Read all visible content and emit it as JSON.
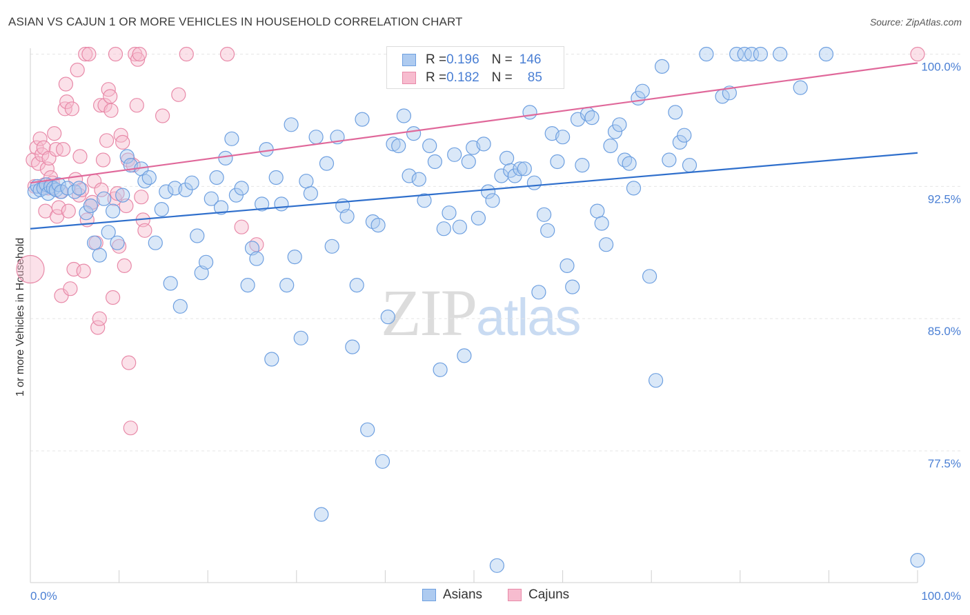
{
  "header": {
    "title": "ASIAN VS CAJUN 1 OR MORE VEHICLES IN HOUSEHOLD CORRELATION CHART",
    "source": "Source: ZipAtlas.com"
  },
  "watermark": {
    "zip": "ZIP",
    "atlas": "atlas"
  },
  "legend_top": {
    "rows": [
      {
        "r_label": "R = ",
        "r_value": "0.196",
        "n_label": "N = ",
        "n_value": "146"
      },
      {
        "r_label": "R = ",
        "r_value": "0.182",
        "n_label": "N = ",
        "n_value": "85"
      }
    ]
  },
  "legend_bottom": {
    "asians": "Asians",
    "cajuns": "Cajuns"
  },
  "colors": {
    "asian_fill": "#aecbf0",
    "asian_stroke": "#6d9fe0",
    "asian_line": "#2f6fcc",
    "cajun_fill": "#f7bccf",
    "cajun_stroke": "#e889a8",
    "cajun_line": "#e0689a",
    "tick_label": "#4a7fd4",
    "grid": "#e5e5e5"
  },
  "chart_data": {
    "type": "scatter",
    "title": "ASIAN VS CAJUN 1 OR MORE VEHICLES IN HOUSEHOLD CORRELATION CHART",
    "xlabel": "",
    "ylabel": "1 or more Vehicles in Household",
    "xlim": [
      0,
      100
    ],
    "ylim": [
      70.5,
      101.5
    ],
    "x_tick_labels": [
      "0.0%",
      "100.0%"
    ],
    "y_ticks": [
      77.5,
      85.0,
      92.5,
      100.0
    ],
    "y_tick_labels": [
      "77.5%",
      "85.0%",
      "92.5%",
      "100.0%"
    ],
    "grid": true,
    "legend_position": "top-center",
    "series": [
      {
        "name": "Asians",
        "r": 0.196,
        "n": 146,
        "trend": {
          "x": [
            0,
            100
          ],
          "y": [
            90.1,
            94.4
          ]
        },
        "points": [
          [
            0.5,
            92.2
          ],
          [
            0.8,
            92.5
          ],
          [
            1.1,
            92.3
          ],
          [
            1.5,
            92.4
          ],
          [
            1.8,
            92.6
          ],
          [
            2.0,
            92.1
          ],
          [
            2.3,
            92.5
          ],
          [
            2.6,
            92.4
          ],
          [
            2.9,
            92.3
          ],
          [
            3.2,
            92.6
          ],
          [
            3.5,
            92.2
          ],
          [
            4.2,
            92.4
          ],
          [
            5.0,
            92.2
          ],
          [
            5.5,
            92.4
          ],
          [
            6.3,
            91.0
          ],
          [
            6.8,
            91.4
          ],
          [
            7.2,
            89.3
          ],
          [
            7.8,
            88.6
          ],
          [
            8.3,
            91.8
          ],
          [
            8.8,
            89.9
          ],
          [
            9.3,
            91.1
          ],
          [
            9.8,
            89.3
          ],
          [
            10.4,
            92.0
          ],
          [
            10.9,
            94.2
          ],
          [
            11.3,
            93.7
          ],
          [
            12.5,
            93.5
          ],
          [
            12.9,
            92.8
          ],
          [
            13.4,
            93.0
          ],
          [
            14.1,
            89.3
          ],
          [
            14.8,
            91.2
          ],
          [
            15.3,
            92.2
          ],
          [
            15.8,
            87.0
          ],
          [
            16.3,
            92.4
          ],
          [
            16.9,
            85.7
          ],
          [
            17.5,
            92.3
          ],
          [
            18.2,
            92.7
          ],
          [
            18.8,
            89.7
          ],
          [
            19.3,
            87.6
          ],
          [
            19.8,
            88.2
          ],
          [
            20.4,
            91.8
          ],
          [
            21.0,
            93.0
          ],
          [
            21.5,
            91.3
          ],
          [
            22.0,
            94.1
          ],
          [
            22.7,
            95.2
          ],
          [
            23.2,
            92.0
          ],
          [
            23.8,
            92.4
          ],
          [
            24.5,
            86.9
          ],
          [
            25.0,
            89.0
          ],
          [
            25.5,
            88.4
          ],
          [
            26.1,
            91.5
          ],
          [
            26.6,
            94.6
          ],
          [
            27.2,
            82.7
          ],
          [
            27.7,
            93.0
          ],
          [
            28.3,
            91.5
          ],
          [
            28.9,
            86.9
          ],
          [
            29.4,
            96.0
          ],
          [
            29.8,
            88.5
          ],
          [
            30.5,
            83.9
          ],
          [
            31.1,
            92.8
          ],
          [
            31.6,
            92.1
          ],
          [
            32.2,
            95.3
          ],
          [
            32.8,
            73.9
          ],
          [
            33.4,
            93.8
          ],
          [
            34.0,
            89.1
          ],
          [
            34.6,
            95.3
          ],
          [
            35.2,
            91.4
          ],
          [
            35.7,
            90.8
          ],
          [
            36.3,
            83.4
          ],
          [
            36.8,
            86.9
          ],
          [
            37.4,
            96.3
          ],
          [
            38.0,
            78.7
          ],
          [
            38.6,
            90.5
          ],
          [
            39.2,
            90.3
          ],
          [
            39.7,
            76.9
          ],
          [
            40.3,
            85.1
          ],
          [
            40.9,
            94.9
          ],
          [
            41.5,
            94.8
          ],
          [
            42.1,
            96.5
          ],
          [
            42.7,
            93.1
          ],
          [
            43.2,
            95.5
          ],
          [
            43.8,
            92.9
          ],
          [
            44.4,
            91.7
          ],
          [
            45.0,
            94.8
          ],
          [
            45.6,
            93.9
          ],
          [
            46.2,
            82.1
          ],
          [
            46.6,
            90.1
          ],
          [
            47.2,
            91.0
          ],
          [
            47.8,
            94.3
          ],
          [
            48.4,
            90.2
          ],
          [
            48.9,
            82.9
          ],
          [
            49.4,
            93.9
          ],
          [
            49.9,
            94.7
          ],
          [
            50.5,
            90.7
          ],
          [
            51.1,
            94.9
          ],
          [
            51.6,
            92.2
          ],
          [
            52.1,
            91.7
          ],
          [
            52.6,
            71.0
          ],
          [
            53.1,
            93.1
          ],
          [
            53.7,
            94.1
          ],
          [
            54.1,
            93.4
          ],
          [
            54.6,
            93.1
          ],
          [
            55.2,
            93.5
          ],
          [
            55.7,
            93.5
          ],
          [
            56.3,
            96.7
          ],
          [
            56.8,
            92.7
          ],
          [
            57.3,
            86.5
          ],
          [
            57.9,
            90.9
          ],
          [
            58.3,
            90.0
          ],
          [
            58.8,
            95.5
          ],
          [
            59.4,
            93.9
          ],
          [
            60.0,
            95.3
          ],
          [
            60.5,
            88.0
          ],
          [
            61.1,
            86.8
          ],
          [
            61.7,
            96.3
          ],
          [
            62.2,
            93.7
          ],
          [
            62.8,
            96.6
          ],
          [
            63.3,
            96.4
          ],
          [
            63.9,
            91.1
          ],
          [
            64.4,
            90.4
          ],
          [
            64.9,
            89.2
          ],
          [
            65.4,
            94.8
          ],
          [
            65.9,
            95.6
          ],
          [
            66.4,
            96.0
          ],
          [
            67.0,
            94.0
          ],
          [
            67.5,
            93.8
          ],
          [
            68.0,
            92.4
          ],
          [
            68.5,
            97.5
          ],
          [
            69.0,
            97.9
          ],
          [
            69.8,
            87.4
          ],
          [
            70.5,
            81.5
          ],
          [
            71.2,
            99.3
          ],
          [
            72.0,
            94.0
          ],
          [
            72.7,
            96.7
          ],
          [
            73.2,
            95.0
          ],
          [
            73.7,
            95.4
          ],
          [
            74.3,
            93.7
          ],
          [
            76.2,
            100.0
          ],
          [
            78.0,
            97.6
          ],
          [
            78.8,
            97.8
          ],
          [
            79.6,
            100.0
          ],
          [
            80.5,
            100.0
          ],
          [
            81.3,
            100.0
          ],
          [
            82.3,
            100.0
          ],
          [
            84.5,
            100.0
          ],
          [
            86.8,
            98.1
          ],
          [
            89.7,
            100.0
          ],
          [
            100.0,
            71.3
          ]
        ]
      },
      {
        "name": "Cajuns",
        "r": 0.182,
        "n": 85,
        "trend": {
          "x": [
            0,
            100
          ],
          "y": [
            92.7,
            99.5
          ]
        },
        "points": [
          [
            0.0,
            87.8
          ],
          [
            0.3,
            94.0
          ],
          [
            0.5,
            92.5
          ],
          [
            0.7,
            94.7
          ],
          [
            0.9,
            93.8
          ],
          [
            1.1,
            95.2
          ],
          [
            1.3,
            94.3
          ],
          [
            1.5,
            94.7
          ],
          [
            1.6,
            92.6
          ],
          [
            1.7,
            91.1
          ],
          [
            1.9,
            93.5
          ],
          [
            2.0,
            92.4
          ],
          [
            2.1,
            94.1
          ],
          [
            2.3,
            93.0
          ],
          [
            2.5,
            92.7
          ],
          [
            2.7,
            95.5
          ],
          [
            2.9,
            94.6
          ],
          [
            3.0,
            90.8
          ],
          [
            3.2,
            91.3
          ],
          [
            3.4,
            92.2
          ],
          [
            3.5,
            86.3
          ],
          [
            3.7,
            94.6
          ],
          [
            3.9,
            96.9
          ],
          [
            4.0,
            98.3
          ],
          [
            4.1,
            97.3
          ],
          [
            4.3,
            91.1
          ],
          [
            4.5,
            86.7
          ],
          [
            4.7,
            96.9
          ],
          [
            4.9,
            87.8
          ],
          [
            5.1,
            92.9
          ],
          [
            5.3,
            99.1
          ],
          [
            5.5,
            92.0
          ],
          [
            5.6,
            94.2
          ],
          [
            5.8,
            92.3
          ],
          [
            6.0,
            87.7
          ],
          [
            6.2,
            100.0
          ],
          [
            6.4,
            90.6
          ],
          [
            6.6,
            100.0
          ],
          [
            6.8,
            91.4
          ],
          [
            7.0,
            91.6
          ],
          [
            7.2,
            92.8
          ],
          [
            7.4,
            89.3
          ],
          [
            7.6,
            84.5
          ],
          [
            7.8,
            85.0
          ],
          [
            7.9,
            97.1
          ],
          [
            8.0,
            92.3
          ],
          [
            8.2,
            94.0
          ],
          [
            8.4,
            97.1
          ],
          [
            8.6,
            95.1
          ],
          [
            8.8,
            98.0
          ],
          [
            9.0,
            97.6
          ],
          [
            9.1,
            96.8
          ],
          [
            9.3,
            86.2
          ],
          [
            9.5,
            91.8
          ],
          [
            9.6,
            100.0
          ],
          [
            9.8,
            92.1
          ],
          [
            10.0,
            89.1
          ],
          [
            10.2,
            95.4
          ],
          [
            10.4,
            95.0
          ],
          [
            10.6,
            88.0
          ],
          [
            10.8,
            91.4
          ],
          [
            11.0,
            94.0
          ],
          [
            11.1,
            82.5
          ],
          [
            11.3,
            78.8
          ],
          [
            11.6,
            93.7
          ],
          [
            11.8,
            100.0
          ],
          [
            12.0,
            97.1
          ],
          [
            12.1,
            99.7
          ],
          [
            12.3,
            100.0
          ],
          [
            12.5,
            91.9
          ],
          [
            12.7,
            90.6
          ],
          [
            12.9,
            90.0
          ],
          [
            14.9,
            96.5
          ],
          [
            16.7,
            97.7
          ],
          [
            17.6,
            100.0
          ],
          [
            22.2,
            100.0
          ],
          [
            23.8,
            90.2
          ],
          [
            25.5,
            89.2
          ],
          [
            100.0,
            100.0
          ]
        ]
      }
    ]
  }
}
